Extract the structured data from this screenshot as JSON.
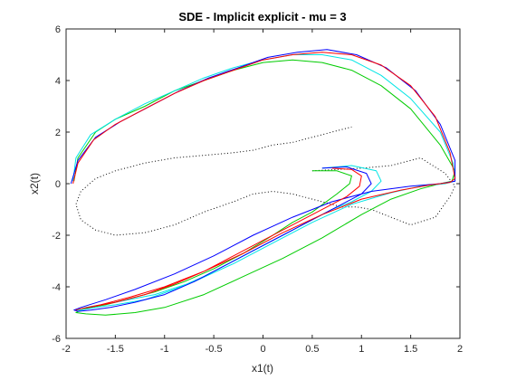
{
  "chart_data": {
    "type": "line",
    "title": "SDE - Implicit explicit - mu = 3",
    "xlabel": "x1(t)",
    "ylabel": "x2(t)",
    "xlim": [
      -2,
      2
    ],
    "ylim": [
      -6,
      6
    ],
    "xticks": [
      "-2",
      "-1.5",
      "-1",
      "-0.5",
      "0",
      "0.5",
      "1",
      "1.5",
      "2"
    ],
    "yticks": [
      "-6",
      "-4",
      "-2",
      "0",
      "2",
      "4",
      "6"
    ],
    "grid": false,
    "legend": "none",
    "series": [
      {
        "color": "#000000",
        "style": "dotted",
        "x": [
          0.5,
          0.75,
          1.0,
          1.3,
          1.6,
          1.85,
          1.95,
          1.9,
          1.75,
          1.5,
          1.3,
          1.1,
          0.95,
          0.8,
          0.7,
          0.5,
          0.3,
          0.1,
          -0.1,
          -0.3,
          -0.6,
          -0.9,
          -1.2,
          -1.5,
          -1.7,
          -1.85,
          -1.9,
          -1.85,
          -1.7,
          -1.5,
          -1.2,
          -0.9,
          -0.6,
          -0.3,
          -0.1,
          0.1,
          0.3,
          0.5,
          0.7,
          0.9
        ],
        "y": [
          0.5,
          0.55,
          0.6,
          0.7,
          1.0,
          0.4,
          -0.1,
          -0.5,
          -1.3,
          -1.6,
          -1.3,
          -1.0,
          -0.9,
          -0.9,
          -0.8,
          -0.6,
          -0.4,
          -0.3,
          -0.4,
          -0.7,
          -1.1,
          -1.6,
          -1.9,
          -2.0,
          -1.8,
          -1.4,
          -0.8,
          -0.3,
          0.2,
          0.5,
          0.8,
          1.0,
          1.1,
          1.2,
          1.3,
          1.5,
          1.6,
          1.8,
          2.0,
          2.2
        ]
      },
      {
        "color": "#00cc00",
        "x": [
          0.5,
          0.75,
          0.9,
          0.88,
          0.75,
          0.5,
          0.3,
          0.1,
          -0.2,
          -0.5,
          -0.8,
          -1.1,
          -1.4,
          -1.6,
          -1.75,
          -1.85,
          -1.9,
          -1.8,
          -1.6,
          -1.3,
          -1.0,
          -0.6,
          -0.2,
          0.2,
          0.6,
          1.0,
          1.3,
          1.6,
          1.8,
          1.92,
          1.95,
          1.8,
          1.5,
          1.2,
          0.9,
          0.6,
          0.3,
          0.0,
          -0.3,
          -0.6,
          -0.9,
          -1.2,
          -1.5,
          -1.7,
          -1.88,
          -1.92
        ],
        "y": [
          0.5,
          0.5,
          0.3,
          0.0,
          -0.4,
          -1.1,
          -1.5,
          -2.0,
          -2.7,
          -3.3,
          -3.8,
          -4.2,
          -4.5,
          -4.7,
          -4.8,
          -4.9,
          -5.0,
          -5.05,
          -5.1,
          -5.0,
          -4.8,
          -4.3,
          -3.6,
          -2.9,
          -2.1,
          -1.2,
          -0.6,
          -0.2,
          0.0,
          0.1,
          0.5,
          1.5,
          2.9,
          3.8,
          4.4,
          4.7,
          4.8,
          4.7,
          4.4,
          4.0,
          3.6,
          3.0,
          2.5,
          2.0,
          1.0,
          0.1
        ]
      },
      {
        "color": "#00e5e5",
        "x": [
          0.6,
          0.9,
          1.15,
          1.2,
          1.1,
          0.9,
          0.7,
          0.5,
          0.3,
          0.0,
          -0.3,
          -0.6,
          -0.9,
          -1.2,
          -1.5,
          -1.7,
          -1.85,
          -1.9,
          -1.8,
          -1.5,
          -1.1,
          -0.7,
          -0.3,
          0.1,
          0.5,
          0.9,
          1.3,
          1.6,
          1.85,
          1.95,
          1.93,
          1.8,
          1.5,
          1.2,
          0.9,
          0.6,
          0.3,
          0.0,
          -0.3,
          -0.6,
          -0.9,
          -1.2,
          -1.5,
          -1.75,
          -1.9,
          -1.93
        ],
        "y": [
          0.6,
          0.7,
          0.5,
          0.1,
          -0.3,
          -0.7,
          -1.0,
          -1.4,
          -1.8,
          -2.4,
          -3.0,
          -3.6,
          -4.1,
          -4.5,
          -4.7,
          -4.8,
          -4.9,
          -4.9,
          -4.8,
          -4.6,
          -4.3,
          -3.8,
          -3.1,
          -2.3,
          -1.5,
          -0.8,
          -0.35,
          -0.1,
          0.0,
          0.1,
          0.8,
          2.0,
          3.3,
          4.2,
          4.8,
          5.0,
          5.0,
          4.8,
          4.5,
          4.1,
          3.6,
          3.1,
          2.5,
          1.9,
          1.0,
          0.1
        ]
      },
      {
        "color": "#0000ff",
        "x": [
          0.6,
          0.85,
          1.05,
          1.1,
          1.0,
          0.8,
          0.6,
          0.4,
          0.2,
          -0.1,
          -0.4,
          -0.7,
          -1.0,
          -1.3,
          -1.55,
          -1.75,
          -1.88,
          -1.92,
          -1.85,
          -1.6,
          -1.3,
          -0.9,
          -0.5,
          -0.1,
          0.3,
          0.7,
          1.1,
          1.5,
          1.8,
          1.95,
          1.95,
          1.8,
          1.55,
          1.25,
          0.95,
          0.65,
          0.35,
          0.05,
          -0.25,
          -0.55,
          -0.85,
          -1.15,
          -1.45,
          -1.7,
          -1.88,
          -1.95
        ],
        "y": [
          0.6,
          0.65,
          0.4,
          0.0,
          -0.4,
          -0.8,
          -1.2,
          -1.6,
          -2.0,
          -2.6,
          -3.2,
          -3.8,
          -4.3,
          -4.6,
          -4.8,
          -4.9,
          -4.95,
          -4.9,
          -4.8,
          -4.5,
          -4.1,
          -3.5,
          -2.8,
          -2.0,
          -1.3,
          -0.7,
          -0.3,
          -0.1,
          0.0,
          0.1,
          0.9,
          2.3,
          3.6,
          4.5,
          5.0,
          5.2,
          5.1,
          4.9,
          4.5,
          4.1,
          3.6,
          3.0,
          2.4,
          1.8,
          0.9,
          0.0
        ]
      },
      {
        "color": "#ff0000",
        "x": [
          0.7,
          0.9,
          1.0,
          0.98,
          0.85,
          0.65,
          0.45,
          0.25,
          0.0,
          -0.3,
          -0.6,
          -0.9,
          -1.2,
          -1.5,
          -1.7,
          -1.85,
          -1.9,
          -1.85,
          -1.65,
          -1.35,
          -1.0,
          -0.6,
          -0.2,
          0.2,
          0.6,
          1.0,
          1.4,
          1.7,
          1.9,
          1.95,
          1.9,
          1.75,
          1.5,
          1.2,
          0.9,
          0.6,
          0.3,
          0.0,
          -0.3,
          -0.6,
          -0.9,
          -1.2,
          -1.5,
          -1.72,
          -1.88,
          -1.93
        ],
        "y": [
          0.6,
          0.55,
          0.3,
          -0.1,
          -0.5,
          -0.9,
          -1.3,
          -1.7,
          -2.2,
          -2.8,
          -3.4,
          -3.9,
          -4.3,
          -4.6,
          -4.75,
          -4.85,
          -4.9,
          -4.85,
          -4.7,
          -4.4,
          -4.0,
          -3.4,
          -2.7,
          -1.9,
          -1.2,
          -0.6,
          -0.25,
          -0.05,
          0.05,
          0.2,
          1.2,
          2.6,
          3.8,
          4.6,
          5.0,
          5.1,
          5.0,
          4.8,
          4.4,
          4.0,
          3.5,
          2.9,
          2.3,
          1.7,
          0.8,
          0.0
        ]
      }
    ]
  }
}
